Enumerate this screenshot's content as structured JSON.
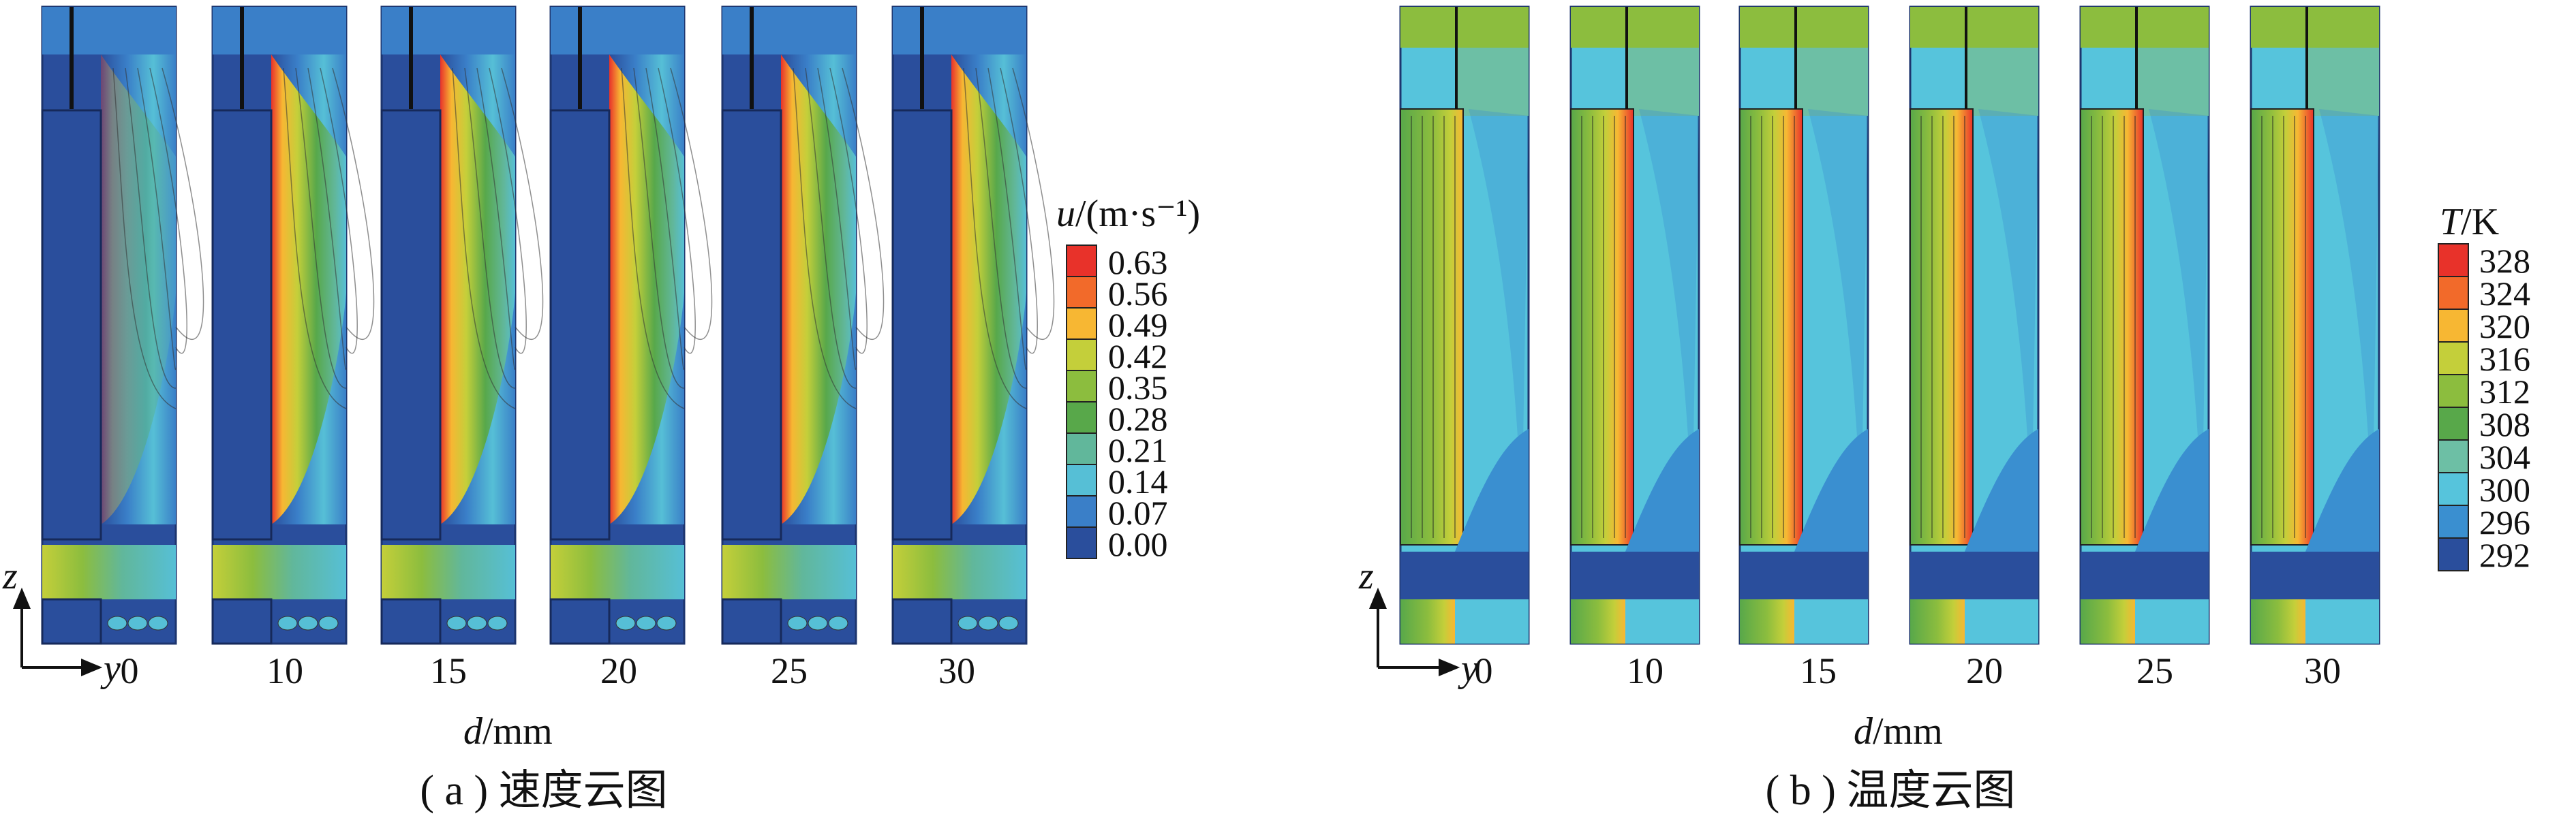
{
  "panel_a": {
    "caption": "( a ) 速度云图",
    "legend_title_var": "u",
    "legend_title_unit": "/(m·s⁻¹)",
    "legend_values": [
      "0.63",
      "0.56",
      "0.49",
      "0.42",
      "0.35",
      "0.28",
      "0.21",
      "0.14",
      "0.07",
      "0.00"
    ],
    "legend_colors": [
      "#e8322a",
      "#f26a2a",
      "#f7b733",
      "#c4cf3a",
      "#8cbd3e",
      "#58a84a",
      "#61b79b",
      "#56bfd6",
      "#3a7fc8",
      "#2a4e9c"
    ],
    "x_axis_label_var": "d",
    "x_axis_label_unit": "/mm",
    "axis_z": "z",
    "axis_y": "y",
    "d_values": [
      "0",
      "10",
      "15",
      "20",
      "25",
      "30"
    ]
  },
  "panel_b": {
    "caption": "( b ) 温度云图",
    "legend_title_var": "T",
    "legend_title_unit": "/K",
    "legend_values": [
      "328",
      "324",
      "320",
      "316",
      "312",
      "308",
      "304",
      "300",
      "296",
      "292"
    ],
    "legend_colors": [
      "#e8322a",
      "#f26a2a",
      "#f7b733",
      "#c4cf3a",
      "#8cbd3e",
      "#58a84a",
      "#6dbfa5",
      "#56c4dc",
      "#3a8fd0",
      "#2a4e9c"
    ],
    "x_axis_label_var": "d",
    "x_axis_label_unit": "/mm",
    "axis_z": "z",
    "axis_y": "y",
    "d_values": [
      "0",
      "10",
      "15",
      "20",
      "25",
      "30"
    ]
  }
}
